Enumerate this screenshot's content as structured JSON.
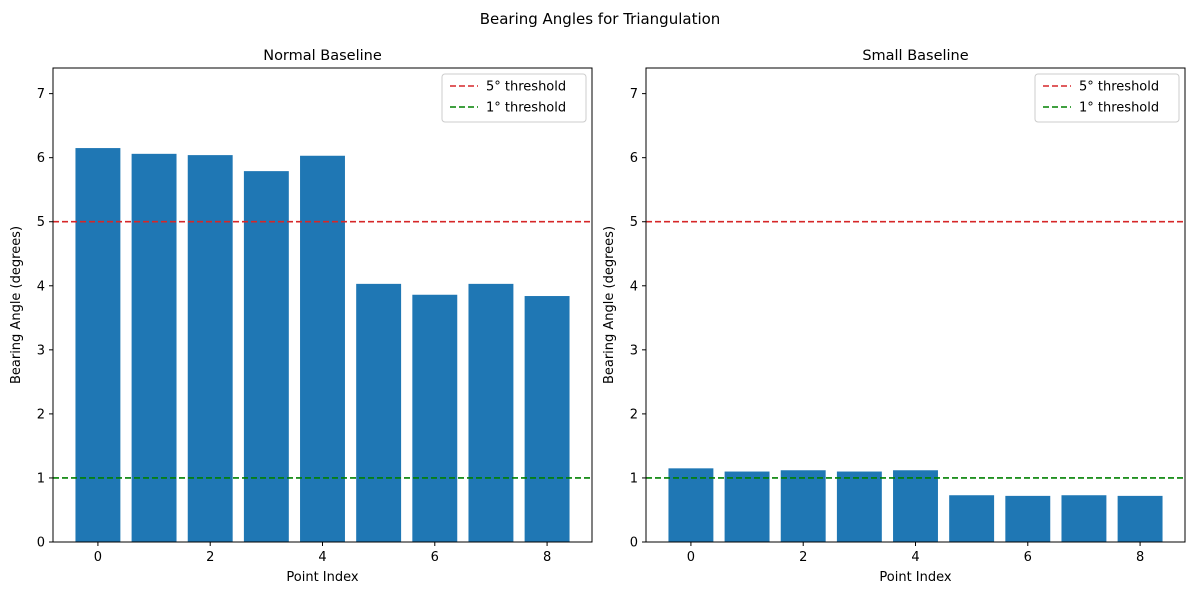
{
  "figure_title": "Bearing Angles for Triangulation",
  "colors": {
    "bar": "#1f77b4",
    "threshold_5": "#d62728",
    "threshold_1": "#008000"
  },
  "chart_data": [
    {
      "type": "bar",
      "title": "Normal Baseline",
      "xlabel": "Point Index",
      "ylabel": "Bearing Angle (degrees)",
      "x": [
        0,
        1,
        2,
        3,
        4,
        5,
        6,
        7,
        8
      ],
      "values": [
        6.15,
        6.06,
        6.04,
        5.79,
        6.03,
        4.03,
        3.86,
        4.03,
        3.84
      ],
      "xlim": [
        -0.8,
        8.8
      ],
      "ylim": [
        0,
        7.4
      ],
      "xticks": [
        0,
        2,
        4,
        6,
        8
      ],
      "yticks": [
        0,
        1,
        2,
        3,
        4,
        5,
        6,
        7
      ],
      "hlines": [
        {
          "label": "5° threshold",
          "y": 5,
          "color": "#d62728"
        },
        {
          "label": "1° threshold",
          "y": 1,
          "color": "#008000"
        }
      ],
      "legend_position": "upper right"
    },
    {
      "type": "bar",
      "title": "Small Baseline",
      "xlabel": "Point Index",
      "ylabel": "Bearing Angle (degrees)",
      "x": [
        0,
        1,
        2,
        3,
        4,
        5,
        6,
        7,
        8
      ],
      "values": [
        1.15,
        1.1,
        1.12,
        1.1,
        1.12,
        0.73,
        0.72,
        0.73,
        0.72
      ],
      "xlim": [
        -0.8,
        8.8
      ],
      "ylim": [
        0,
        7.4
      ],
      "xticks": [
        0,
        2,
        4,
        6,
        8
      ],
      "yticks": [
        0,
        1,
        2,
        3,
        4,
        5,
        6,
        7
      ],
      "hlines": [
        {
          "label": "5° threshold",
          "y": 5,
          "color": "#d62728"
        },
        {
          "label": "1° threshold",
          "y": 1,
          "color": "#008000"
        }
      ],
      "legend_position": "upper right"
    }
  ]
}
